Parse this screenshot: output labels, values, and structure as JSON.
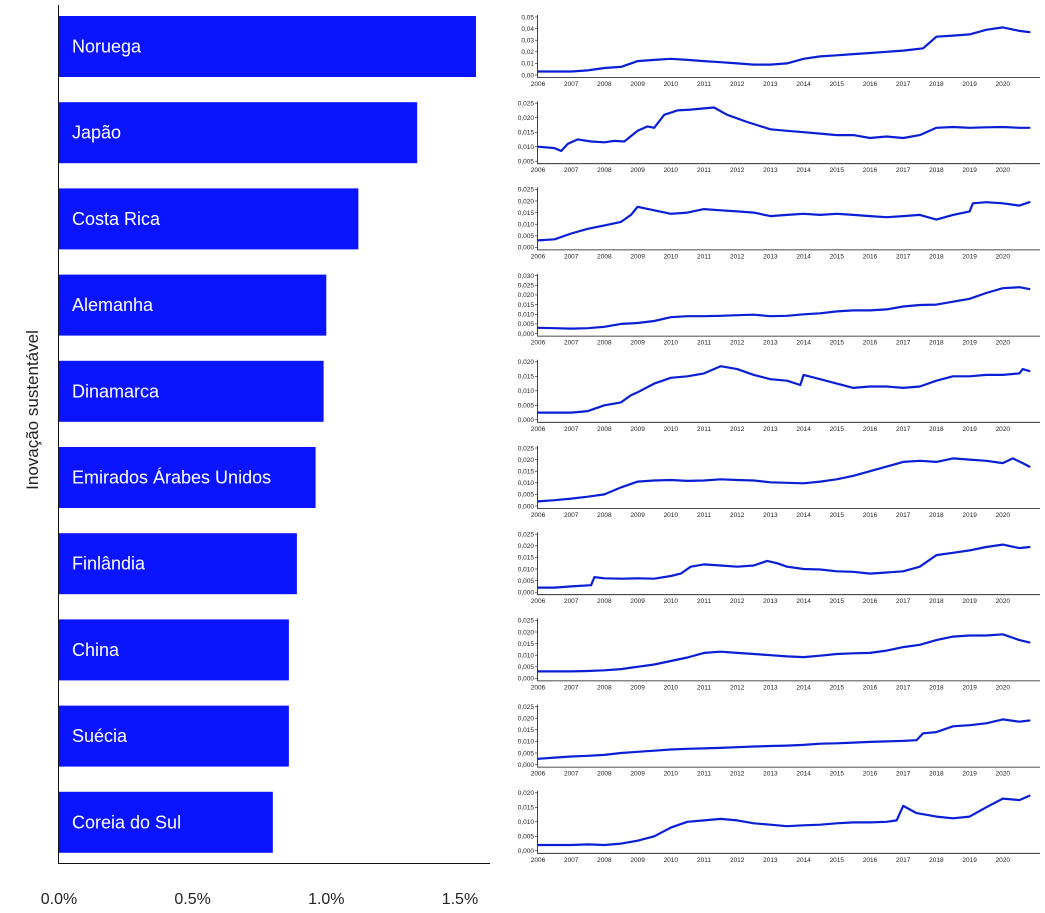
{
  "chart_data": [
    {
      "type": "bar",
      "orientation": "horizontal",
      "ylabel": "Inovação sustentável",
      "categories": [
        "Noruega",
        "Japão",
        "Costa Rica",
        "Alemanha",
        "Dinamarca",
        "Emirados Árabes Unidos",
        "Finlândia",
        "China",
        "Suécia",
        "Coreia do Sul"
      ],
      "values": [
        1.56,
        1.34,
        1.12,
        1.0,
        0.99,
        0.96,
        0.89,
        0.86,
        0.86,
        0.8
      ],
      "xlim": [
        0,
        1.6
      ],
      "xticks": [
        "0.0%",
        "0.5%",
        "1.0%",
        "1.5%"
      ],
      "xtick_values": [
        0,
        0.5,
        1.0,
        1.5
      ],
      "bar_color": "#0a14ff"
    },
    {
      "type": "line",
      "x_ticks": [
        "2006",
        "2007",
        "2008",
        "2009",
        "2010",
        "2011",
        "2012",
        "2013",
        "2014",
        "2015",
        "2016",
        "2017",
        "2018",
        "2019",
        "2020"
      ],
      "line_color": "#0a1fd4",
      "series": [
        {
          "yticks": [
            "0,00",
            "0,01",
            "0,02",
            "0,03",
            "0,04",
            "0,05"
          ],
          "yrange": [
            0,
            0.05
          ],
          "x": [
            2006.0,
            2007.0,
            2007.5,
            2008.0,
            2008.5,
            2009.0,
            2009.5,
            2010.0,
            2010.5,
            2011.0,
            2011.5,
            2012.0,
            2012.5,
            2013.0,
            2013.5,
            2014.0,
            2014.5,
            2015.0,
            2015.5,
            2016.0,
            2016.5,
            2017.0,
            2017.3,
            2017.6,
            2017.8,
            2018.0,
            2018.5,
            2019.0,
            2019.5,
            2020.0,
            2020.5,
            2020.8
          ],
          "y": [
            0.003,
            0.003,
            0.004,
            0.006,
            0.007,
            0.012,
            0.013,
            0.014,
            0.013,
            0.012,
            0.011,
            0.01,
            0.009,
            0.009,
            0.01,
            0.014,
            0.016,
            0.017,
            0.018,
            0.019,
            0.02,
            0.021,
            0.022,
            0.023,
            0.028,
            0.033,
            0.034,
            0.035,
            0.039,
            0.041,
            0.038,
            0.037
          ]
        },
        {
          "yticks": [
            "0,005",
            "0,010",
            "0,015",
            "0,020",
            "0,025"
          ],
          "yrange": [
            0.005,
            0.025
          ],
          "x": [
            2006.0,
            2006.5,
            2006.7,
            2006.9,
            2007.2,
            2007.6,
            2008.0,
            2008.3,
            2008.6,
            2009.0,
            2009.3,
            2009.5,
            2009.8,
            2010.2,
            2010.6,
            2011.0,
            2011.3,
            2011.7,
            2012.3,
            2013.0,
            2013.5,
            2014.0,
            2014.5,
            2015.0,
            2015.5,
            2016.0,
            2016.5,
            2017.0,
            2017.5,
            2018.0,
            2018.5,
            2019.0,
            2019.5,
            2020.0,
            2020.5,
            2020.8
          ],
          "y": [
            0.01,
            0.0095,
            0.0085,
            0.011,
            0.0125,
            0.0118,
            0.0115,
            0.012,
            0.0118,
            0.0155,
            0.017,
            0.0165,
            0.021,
            0.0225,
            0.0228,
            0.0232,
            0.0235,
            0.021,
            0.0185,
            0.016,
            0.0155,
            0.015,
            0.0145,
            0.014,
            0.014,
            0.013,
            0.0135,
            0.013,
            0.014,
            0.0165,
            0.0168,
            0.0165,
            0.0167,
            0.0168,
            0.0165,
            0.0165
          ]
        },
        {
          "yticks": [
            "0,000",
            "0,005",
            "0,010",
            "0,015",
            "0,020",
            "0,025"
          ],
          "yrange": [
            0,
            0.025
          ],
          "x": [
            2006.0,
            2006.5,
            2007.0,
            2007.5,
            2008.0,
            2008.5,
            2008.8,
            2009.0,
            2009.5,
            2010.0,
            2010.5,
            2011.0,
            2011.5,
            2012.0,
            2012.5,
            2013.0,
            2013.5,
            2014.0,
            2014.5,
            2015.0,
            2015.5,
            2016.0,
            2016.5,
            2017.0,
            2017.5,
            2018.0,
            2018.5,
            2019.0,
            2019.1,
            2019.5,
            2020.0,
            2020.5,
            2020.8
          ],
          "y": [
            0.003,
            0.0035,
            0.006,
            0.008,
            0.0095,
            0.011,
            0.014,
            0.0175,
            0.016,
            0.0145,
            0.015,
            0.0165,
            0.016,
            0.0155,
            0.015,
            0.0135,
            0.014,
            0.0145,
            0.014,
            0.0145,
            0.014,
            0.0135,
            0.013,
            0.0135,
            0.014,
            0.012,
            0.014,
            0.0155,
            0.019,
            0.0195,
            0.019,
            0.018,
            0.0195
          ]
        },
        {
          "yticks": [
            "0,000",
            "0,005",
            "0,010",
            "0,015",
            "0,020",
            "0,025",
            "0,030"
          ],
          "yrange": [
            0,
            0.03
          ],
          "x": [
            2006.0,
            2006.5,
            2007.0,
            2007.5,
            2008.0,
            2008.5,
            2009.0,
            2009.5,
            2010.0,
            2010.5,
            2011.0,
            2011.5,
            2012.0,
            2012.5,
            2013.0,
            2013.5,
            2014.0,
            2014.5,
            2015.0,
            2015.5,
            2016.0,
            2016.5,
            2017.0,
            2017.5,
            2018.0,
            2018.5,
            2019.0,
            2019.5,
            2020.0,
            2020.5,
            2020.8
          ],
          "y": [
            0.003,
            0.0028,
            0.0026,
            0.0028,
            0.0035,
            0.005,
            0.0055,
            0.0065,
            0.0085,
            0.009,
            0.009,
            0.0092,
            0.0095,
            0.0098,
            0.009,
            0.0092,
            0.01,
            0.0105,
            0.0115,
            0.012,
            0.012,
            0.0125,
            0.014,
            0.0148,
            0.015,
            0.0165,
            0.018,
            0.021,
            0.0235,
            0.024,
            0.023
          ]
        },
        {
          "yticks": [
            "0,000",
            "0,005",
            "0,010",
            "0,015",
            "0,020"
          ],
          "yrange": [
            0,
            0.02
          ],
          "x": [
            2006.0,
            2006.5,
            2007.0,
            2007.5,
            2008.0,
            2008.5,
            2008.8,
            2009.0,
            2009.5,
            2010.0,
            2010.5,
            2011.0,
            2011.5,
            2012.0,
            2012.5,
            2013.0,
            2013.5,
            2013.9,
            2014.0,
            2014.5,
            2015.0,
            2015.5,
            2016.0,
            2016.5,
            2017.0,
            2017.5,
            2018.0,
            2018.5,
            2019.0,
            2019.5,
            2020.0,
            2020.5,
            2020.6,
            2020.8
          ],
          "y": [
            0.0025,
            0.0025,
            0.0025,
            0.003,
            0.005,
            0.006,
            0.0085,
            0.0095,
            0.0125,
            0.0145,
            0.015,
            0.016,
            0.0185,
            0.0175,
            0.0155,
            0.014,
            0.0135,
            0.012,
            0.0155,
            0.014,
            0.0125,
            0.011,
            0.0115,
            0.0115,
            0.011,
            0.0115,
            0.0135,
            0.015,
            0.015,
            0.0155,
            0.0155,
            0.016,
            0.0175,
            0.0168
          ]
        },
        {
          "yticks": [
            "0,000",
            "0,005",
            "0,010",
            "0,015",
            "0,020",
            "0,025"
          ],
          "yrange": [
            0,
            0.025
          ],
          "x": [
            2006.0,
            2006.5,
            2007.0,
            2007.5,
            2008.0,
            2008.5,
            2009.0,
            2009.5,
            2010.0,
            2010.5,
            2011.0,
            2011.5,
            2012.0,
            2012.5,
            2013.0,
            2013.5,
            2014.0,
            2014.5,
            2015.0,
            2015.5,
            2016.0,
            2016.5,
            2017.0,
            2017.5,
            2018.0,
            2018.5,
            2019.0,
            2019.5,
            2020.0,
            2020.3,
            2020.6,
            2020.8
          ],
          "y": [
            0.002,
            0.0025,
            0.0032,
            0.004,
            0.005,
            0.008,
            0.0105,
            0.011,
            0.0112,
            0.0108,
            0.011,
            0.0115,
            0.0112,
            0.011,
            0.0102,
            0.01,
            0.0098,
            0.0105,
            0.0115,
            0.013,
            0.015,
            0.017,
            0.019,
            0.0195,
            0.019,
            0.0205,
            0.02,
            0.0195,
            0.0185,
            0.0205,
            0.0185,
            0.017
          ]
        },
        {
          "yticks": [
            "0,000",
            "0,005",
            "0,010",
            "0,015",
            "0,020",
            "0,025"
          ],
          "yrange": [
            0,
            0.025
          ],
          "x": [
            2006.0,
            2006.5,
            2007.0,
            2007.6,
            2007.7,
            2008.0,
            2008.5,
            2009.0,
            2009.5,
            2010.0,
            2010.3,
            2010.6,
            2011.0,
            2011.5,
            2012.0,
            2012.5,
            2012.9,
            2013.2,
            2013.5,
            2014.0,
            2014.5,
            2015.0,
            2015.5,
            2016.0,
            2016.5,
            2017.0,
            2017.5,
            2018.0,
            2018.5,
            2019.0,
            2019.5,
            2020.0,
            2020.5,
            2020.8
          ],
          "y": [
            0.002,
            0.002,
            0.0025,
            0.003,
            0.0065,
            0.006,
            0.0058,
            0.006,
            0.0058,
            0.007,
            0.008,
            0.011,
            0.012,
            0.0115,
            0.011,
            0.0115,
            0.0135,
            0.0125,
            0.011,
            0.01,
            0.0098,
            0.009,
            0.0088,
            0.008,
            0.0085,
            0.009,
            0.011,
            0.016,
            0.017,
            0.018,
            0.0195,
            0.0205,
            0.019,
            0.0195
          ]
        },
        {
          "yticks": [
            "0,000",
            "0,005",
            "0,010",
            "0,015",
            "0,020",
            "0,025"
          ],
          "yrange": [
            0,
            0.025
          ],
          "x": [
            2006.0,
            2006.5,
            2007.0,
            2007.5,
            2008.0,
            2008.5,
            2009.0,
            2009.5,
            2010.0,
            2010.5,
            2011.0,
            2011.5,
            2012.0,
            2012.5,
            2013.0,
            2013.5,
            2014.0,
            2014.5,
            2015.0,
            2015.5,
            2016.0,
            2016.5,
            2017.0,
            2017.5,
            2018.0,
            2018.5,
            2019.0,
            2019.5,
            2020.0,
            2020.5,
            2020.8
          ],
          "y": [
            0.003,
            0.003,
            0.003,
            0.0032,
            0.0035,
            0.004,
            0.005,
            0.006,
            0.0075,
            0.009,
            0.011,
            0.0115,
            0.011,
            0.0105,
            0.01,
            0.0095,
            0.0092,
            0.0098,
            0.0105,
            0.0108,
            0.011,
            0.012,
            0.0135,
            0.0145,
            0.0165,
            0.018,
            0.0185,
            0.0185,
            0.019,
            0.0165,
            0.0155
          ]
        },
        {
          "yticks": [
            "0,000",
            "0,005",
            "0,010",
            "0,015",
            "0,020",
            "0,025"
          ],
          "yrange": [
            0,
            0.025
          ],
          "x": [
            2006.0,
            2006.5,
            2007.0,
            2007.5,
            2008.0,
            2008.5,
            2009.0,
            2009.5,
            2010.0,
            2010.5,
            2011.0,
            2011.5,
            2012.0,
            2012.5,
            2013.0,
            2013.5,
            2014.0,
            2014.5,
            2015.0,
            2015.5,
            2016.0,
            2016.5,
            2017.0,
            2017.4,
            2017.6,
            2018.0,
            2018.5,
            2019.0,
            2019.5,
            2020.0,
            2020.5,
            2020.8
          ],
          "y": [
            0.0025,
            0.003,
            0.0035,
            0.0038,
            0.0042,
            0.005,
            0.0055,
            0.006,
            0.0065,
            0.0068,
            0.007,
            0.0072,
            0.0075,
            0.0078,
            0.008,
            0.0082,
            0.0085,
            0.009,
            0.0092,
            0.0095,
            0.0098,
            0.01,
            0.0102,
            0.0105,
            0.0135,
            0.014,
            0.0165,
            0.017,
            0.0178,
            0.0195,
            0.0185,
            0.019
          ]
        },
        {
          "yticks": [
            "0,000",
            "0,005",
            "0,010",
            "0,015",
            "0,020"
          ],
          "yrange": [
            0,
            0.02
          ],
          "x": [
            2006.0,
            2006.5,
            2007.0,
            2007.5,
            2008.0,
            2008.5,
            2009.0,
            2009.5,
            2010.0,
            2010.5,
            2011.0,
            2011.5,
            2012.0,
            2012.5,
            2013.0,
            2013.5,
            2014.0,
            2014.5,
            2015.0,
            2015.5,
            2016.0,
            2016.5,
            2016.8,
            2017.0,
            2017.4,
            2018.0,
            2018.5,
            2019.0,
            2019.5,
            2020.0,
            2020.5,
            2020.8
          ],
          "y": [
            0.002,
            0.002,
            0.002,
            0.0022,
            0.002,
            0.0025,
            0.0035,
            0.005,
            0.008,
            0.01,
            0.0105,
            0.011,
            0.0105,
            0.0095,
            0.009,
            0.0085,
            0.0088,
            0.009,
            0.0095,
            0.0098,
            0.0098,
            0.01,
            0.0105,
            0.0155,
            0.013,
            0.0118,
            0.0112,
            0.0118,
            0.015,
            0.018,
            0.0175,
            0.019
          ]
        }
      ]
    }
  ]
}
